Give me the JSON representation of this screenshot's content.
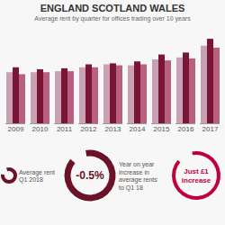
{
  "chart_data": {
    "type": "bar",
    "title": "ENGLAND SCOTLAND WALES",
    "subtitle": "Average rent by quarter for offices trading over 10 years",
    "categories": [
      "2009",
      "2010",
      "2011",
      "2012",
      "2013",
      "2014",
      "2015",
      "2016",
      "2017"
    ],
    "series": [
      {
        "color": "#c9a0b4",
        "values": [
          52,
          52,
          53,
          57,
          60,
          59,
          65,
          67,
          79
        ]
      },
      {
        "color": "#7b1535",
        "values": [
          57,
          55,
          56,
          60,
          61,
          63,
          70,
          72,
          86
        ]
      },
      {
        "color": "#b86080",
        "values": [
          50,
          52,
          53,
          57,
          59,
          60,
          64,
          66,
          77
        ]
      }
    ],
    "ylim": [
      0,
      98
    ],
    "tick_labels": "x",
    "annotations": [
      {
        "text": "Average rent\nQ1 2018",
        "color": "#6b1228"
      },
      {
        "text": "-0.5%",
        "color": "#6b1228"
      },
      {
        "text": "Year on year\nincrease in\naverage rents\nto Q1 18"
      },
      {
        "text": "Just £1\nincrease",
        "color": "#c0003c"
      }
    ]
  }
}
